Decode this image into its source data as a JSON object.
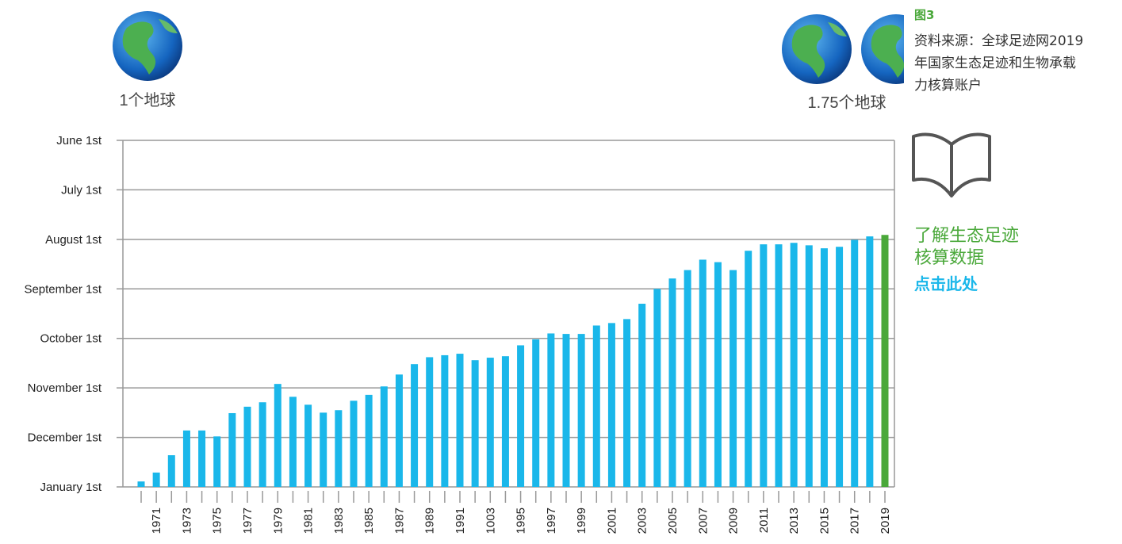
{
  "chart_data": {
    "type": "bar",
    "left_globe_label": "1个地球",
    "right_globe_label": "1.75个地球",
    "figure_label": "图3",
    "source_lines": [
      "资料来源：全球足迹网2019",
      "年国家生态足迹和生物承载",
      "力核算账户"
    ],
    "cta_lines": [
      "了解生态足迹",
      "核算数据"
    ],
    "cta_link": "点击此处",
    "categories": [
      null,
      "1971",
      null,
      "1973",
      null,
      "1975",
      null,
      "1977",
      null,
      "1979",
      null,
      "1981",
      null,
      "1983",
      null,
      "1985",
      null,
      "1987",
      null,
      "1989",
      null,
      "1991",
      null,
      "1003",
      null,
      "1995",
      null,
      "1997",
      null,
      "1999",
      null,
      "2001",
      null,
      "2003",
      null,
      "2005",
      null,
      "2007",
      null,
      "2009",
      null,
      "2011",
      null,
      "2013",
      null,
      "2015",
      null,
      "2017",
      null,
      "2019"
    ],
    "values": [
      12.89,
      12.71,
      12.36,
      11.86,
      11.86,
      11.98,
      11.51,
      11.38,
      11.29,
      10.92,
      11.18,
      11.34,
      11.5,
      11.45,
      11.26,
      11.14,
      10.97,
      10.73,
      10.52,
      10.38,
      10.34,
      10.31,
      10.44,
      10.39,
      10.36,
      10.14,
      10.02,
      9.9,
      9.91,
      9.91,
      9.74,
      9.69,
      9.61,
      9.3,
      9.0,
      8.79,
      8.62,
      8.41,
      8.46,
      8.62,
      8.23,
      8.1,
      8.1,
      8.07,
      8.12,
      8.18,
      8.15,
      8.01,
      7.94,
      7.91
    ],
    "colors": [
      "#1ab7ea",
      "#1ab7ea",
      "#1ab7ea",
      "#1ab7ea",
      "#1ab7ea",
      "#1ab7ea",
      "#1ab7ea",
      "#1ab7ea",
      "#1ab7ea",
      "#1ab7ea",
      "#1ab7ea",
      "#1ab7ea",
      "#1ab7ea",
      "#1ab7ea",
      "#1ab7ea",
      "#1ab7ea",
      "#1ab7ea",
      "#1ab7ea",
      "#1ab7ea",
      "#1ab7ea",
      "#1ab7ea",
      "#1ab7ea",
      "#1ab7ea",
      "#1ab7ea",
      "#1ab7ea",
      "#1ab7ea",
      "#1ab7ea",
      "#1ab7ea",
      "#1ab7ea",
      "#1ab7ea",
      "#1ab7ea",
      "#1ab7ea",
      "#1ab7ea",
      "#1ab7ea",
      "#1ab7ea",
      "#1ab7ea",
      "#1ab7ea",
      "#1ab7ea",
      "#1ab7ea",
      "#1ab7ea",
      "#1ab7ea",
      "#1ab7ea",
      "#1ab7ea",
      "#1ab7ea",
      "#1ab7ea",
      "#1ab7ea",
      "#1ab7ea",
      "#1ab7ea",
      "#1ab7ea",
      "#4aa83a"
    ],
    "ylim": [
      13,
      6
    ],
    "yticks": [
      {
        "value": 6,
        "label": "June 1st"
      },
      {
        "value": 7,
        "label": "July 1st"
      },
      {
        "value": 8,
        "label": "August 1st"
      },
      {
        "value": 9,
        "label": "September 1st"
      },
      {
        "value": 10,
        "label": "October 1st"
      },
      {
        "value": 11,
        "label": "November 1st"
      },
      {
        "value": 12,
        "label": "December 1st"
      },
      {
        "value": 13,
        "label": "January 1st"
      }
    ],
    "grid": true
  }
}
